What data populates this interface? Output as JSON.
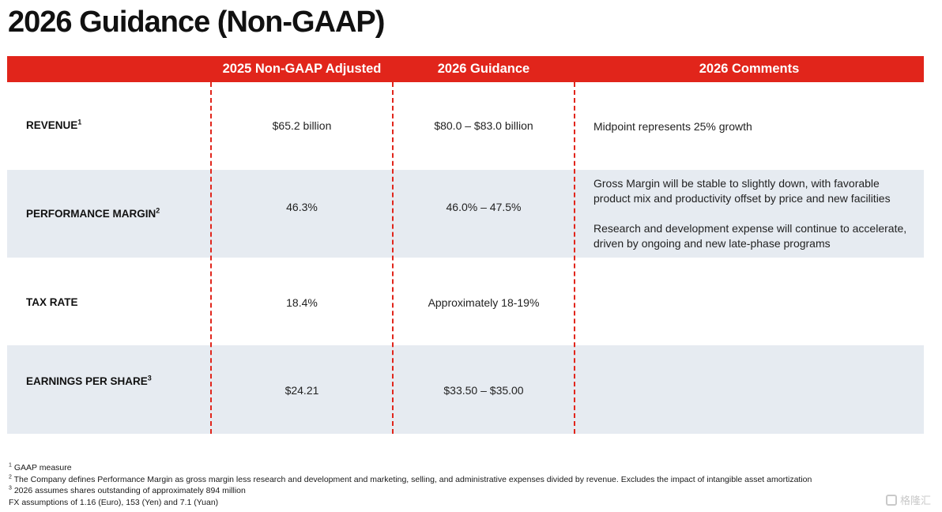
{
  "title": "2026 Guidance  (Non-GAAP)",
  "header": {
    "col1": "2025 Non-GAAP Adjusted",
    "col2": "2026 Guidance",
    "col3": "2026 Comments"
  },
  "rows": [
    {
      "label": "REVENUE",
      "footnote_ref": "1",
      "adjusted_2025": "$65.2 billion",
      "guidance_2026": "$80.0 – $83.0 billion",
      "comments": [
        "Midpoint represents 25% growth"
      ]
    },
    {
      "label": "PERFORMANCE MARGIN",
      "footnote_ref": "2",
      "adjusted_2025": "46.3%",
      "guidance_2026": "46.0% – 47.5%",
      "comments": [
        "Gross Margin will be stable to slightly down, with favorable product mix and productivity offset by price and new facilities",
        "Research and development expense will continue to accelerate, driven by ongoing and new late-phase programs"
      ]
    },
    {
      "label": "TAX RATE",
      "footnote_ref": "",
      "adjusted_2025": "18.4%",
      "guidance_2026": "Approximately 18-19%",
      "comments": []
    },
    {
      "label": "EARNINGS PER SHARE",
      "footnote_ref": "3",
      "adjusted_2025": "$24.21",
      "guidance_2026": "$33.50 – $35.00",
      "comments": []
    }
  ],
  "footnotes": [
    {
      "ref": "1",
      "text": "GAAP measure"
    },
    {
      "ref": "2",
      "text": "The Company defines Performance Margin as gross margin less research and development and marketing, selling, and administrative expenses divided by revenue. Excludes the impact of intangible asset amortization"
    },
    {
      "ref": "3",
      "text": "2026 assumes shares outstanding of approximately 894 million"
    },
    {
      "ref": "",
      "text": "FX assumptions of 1.16 (Euro), 153 (Yen) and 7.1 (Yuan)"
    }
  ],
  "watermark": "格隆汇",
  "colors": {
    "accent_red": "#e1251b",
    "row_shade": "#e6ebf1"
  }
}
